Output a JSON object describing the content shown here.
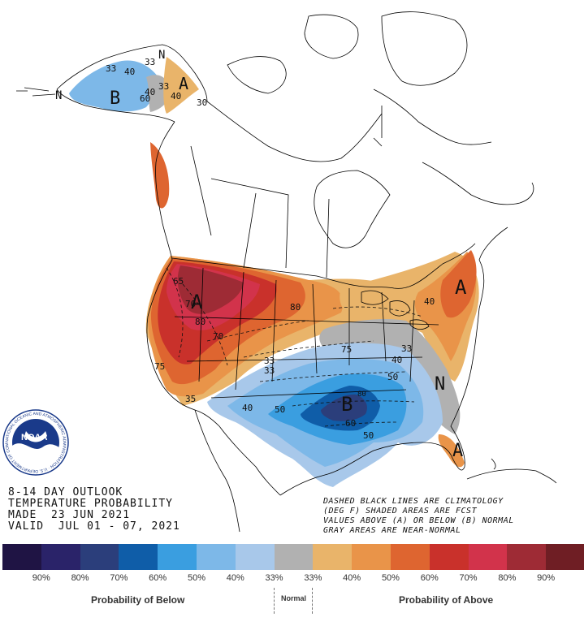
{
  "title_block": {
    "line1": "8-14 DAY OUTLOOK",
    "line2": "TEMPERATURE PROBABILITY",
    "line3": "MADE  23 JUN 2021",
    "line4": "VALID  JUL 01 - 07, 2021"
  },
  "notes": {
    "line1": "DASHED BLACK LINES ARE CLIMATOLOGY",
    "line2": "(DEG F) SHADED AREAS ARE FCST",
    "line3": "VALUES ABOVE (A) OR BELOW (B) NORMAL",
    "line4": "GRAY AREAS ARE NEAR-NORMAL"
  },
  "logo": {
    "text": "NOAA",
    "ring": "NATIONAL OCEANIC AND ATMOSPHERIC ADMINISTRATION · U.S. DEPARTMENT OF COMMERCE"
  },
  "map_labels": {
    "a_west": "A",
    "a_northeast": "A",
    "a_florida": "A",
    "a_alaska": "A",
    "b_plains": "B",
    "b_alaska": "B",
    "n_southeast": "N",
    "n_alaska": "N",
    "n_mainland": "N",
    "v65": "65",
    "v70": "70",
    "v80a": "80",
    "v80b": "80",
    "v70b": "70",
    "v75": "75",
    "v35": "35",
    "v40": "40",
    "v50": "50",
    "v33a": "33",
    "v33b": "33",
    "v75b": "75",
    "v40b": "40",
    "v50b": "50",
    "v60": "60",
    "v80c": "80",
    "v50c": "50",
    "v33c": "33",
    "v40c": "40",
    "ak33a": "33",
    "ak40": "40",
    "ak33b": "33",
    "ak60": "60",
    "ak40b": "40",
    "ak40c": "40",
    "ak33c": "33",
    "ak30": "30"
  },
  "legend": {
    "colors": [
      "#1f1444",
      "#2a2369",
      "#2b3e7b",
      "#0f5da8",
      "#3a9ee0",
      "#7db8e8",
      "#a8c8ea",
      "#b1b1b1",
      "#e9b46a",
      "#e99449",
      "#de6530",
      "#c9312b",
      "#d2334b",
      "#9e2b35",
      "#6f1e24"
    ],
    "labels": [
      "90%",
      "80%",
      "70%",
      "60%",
      "50%",
      "40%",
      "33%",
      "33%",
      "40%",
      "50%",
      "60%",
      "70%",
      "80%",
      "90%"
    ],
    "below_caption": "Probability of Below",
    "normal_caption": "Normal",
    "above_caption": "Probability of Above"
  }
}
